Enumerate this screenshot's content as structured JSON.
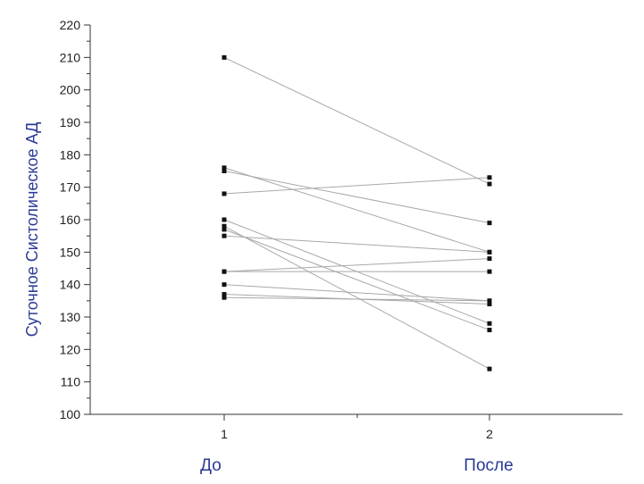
{
  "chart_data": {
    "type": "line",
    "ylabel": "Суточное Систолическое АД",
    "x_ticks": [
      "1",
      "2"
    ],
    "x_categories": [
      "До",
      "После"
    ],
    "ylim": [
      100,
      220
    ],
    "y_ticks": [
      100,
      110,
      120,
      130,
      140,
      150,
      160,
      170,
      180,
      190,
      200,
      210,
      220
    ],
    "pairs": [
      [
        210,
        171
      ],
      [
        176,
        150
      ],
      [
        175,
        159
      ],
      [
        168,
        173
      ],
      [
        160,
        128
      ],
      [
        158,
        114
      ],
      [
        157,
        126
      ],
      [
        155,
        150
      ],
      [
        144,
        148
      ],
      [
        144,
        144
      ],
      [
        140,
        135
      ],
      [
        137,
        134
      ],
      [
        136,
        135
      ]
    ],
    "grid": false
  },
  "colors": {
    "label_color": "#2b3a96",
    "line_color": "#a8a8a8",
    "point_color": "#111111"
  }
}
